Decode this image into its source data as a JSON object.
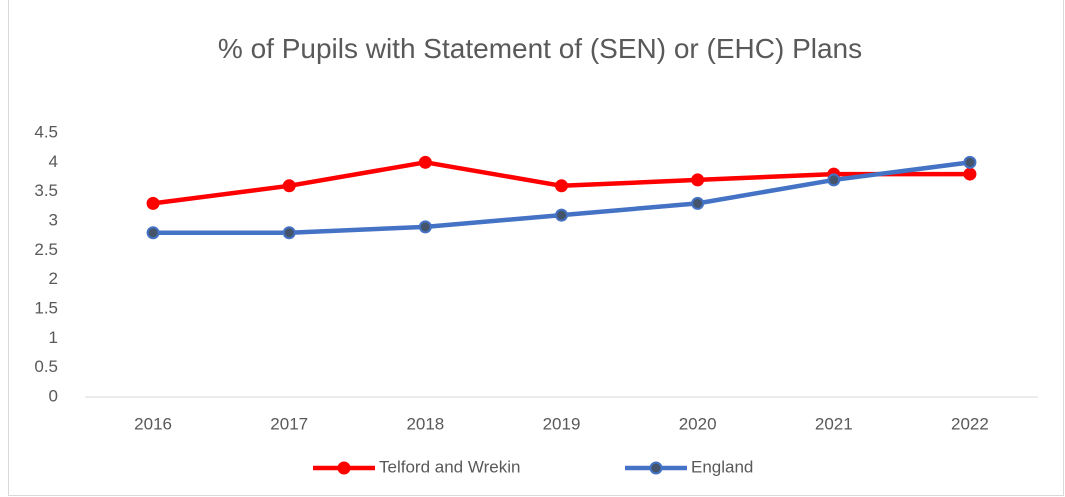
{
  "chart_data": {
    "type": "line",
    "title": "% of Pupils with Statement of (SEN) or (EHC) Plans",
    "categories": [
      "2016",
      "2017",
      "2018",
      "2019",
      "2020",
      "2021",
      "2022"
    ],
    "series": [
      {
        "name": "Telford and Wrekin",
        "color": "#ff0000",
        "marker_color": "#ff0000",
        "values": [
          3.3,
          3.6,
          4.0,
          3.6,
          3.7,
          3.8,
          3.8
        ]
      },
      {
        "name": "England",
        "color": "#4472c4",
        "marker_color": "#44546a",
        "values": [
          2.8,
          2.8,
          2.9,
          3.1,
          3.3,
          3.7,
          4.0
        ]
      }
    ],
    "ylim": [
      0,
      4.5
    ],
    "yticks": [
      0,
      0.5,
      1,
      1.5,
      2,
      2.5,
      3,
      3.5,
      4,
      4.5
    ],
    "grid": false,
    "legend": "bottom"
  }
}
